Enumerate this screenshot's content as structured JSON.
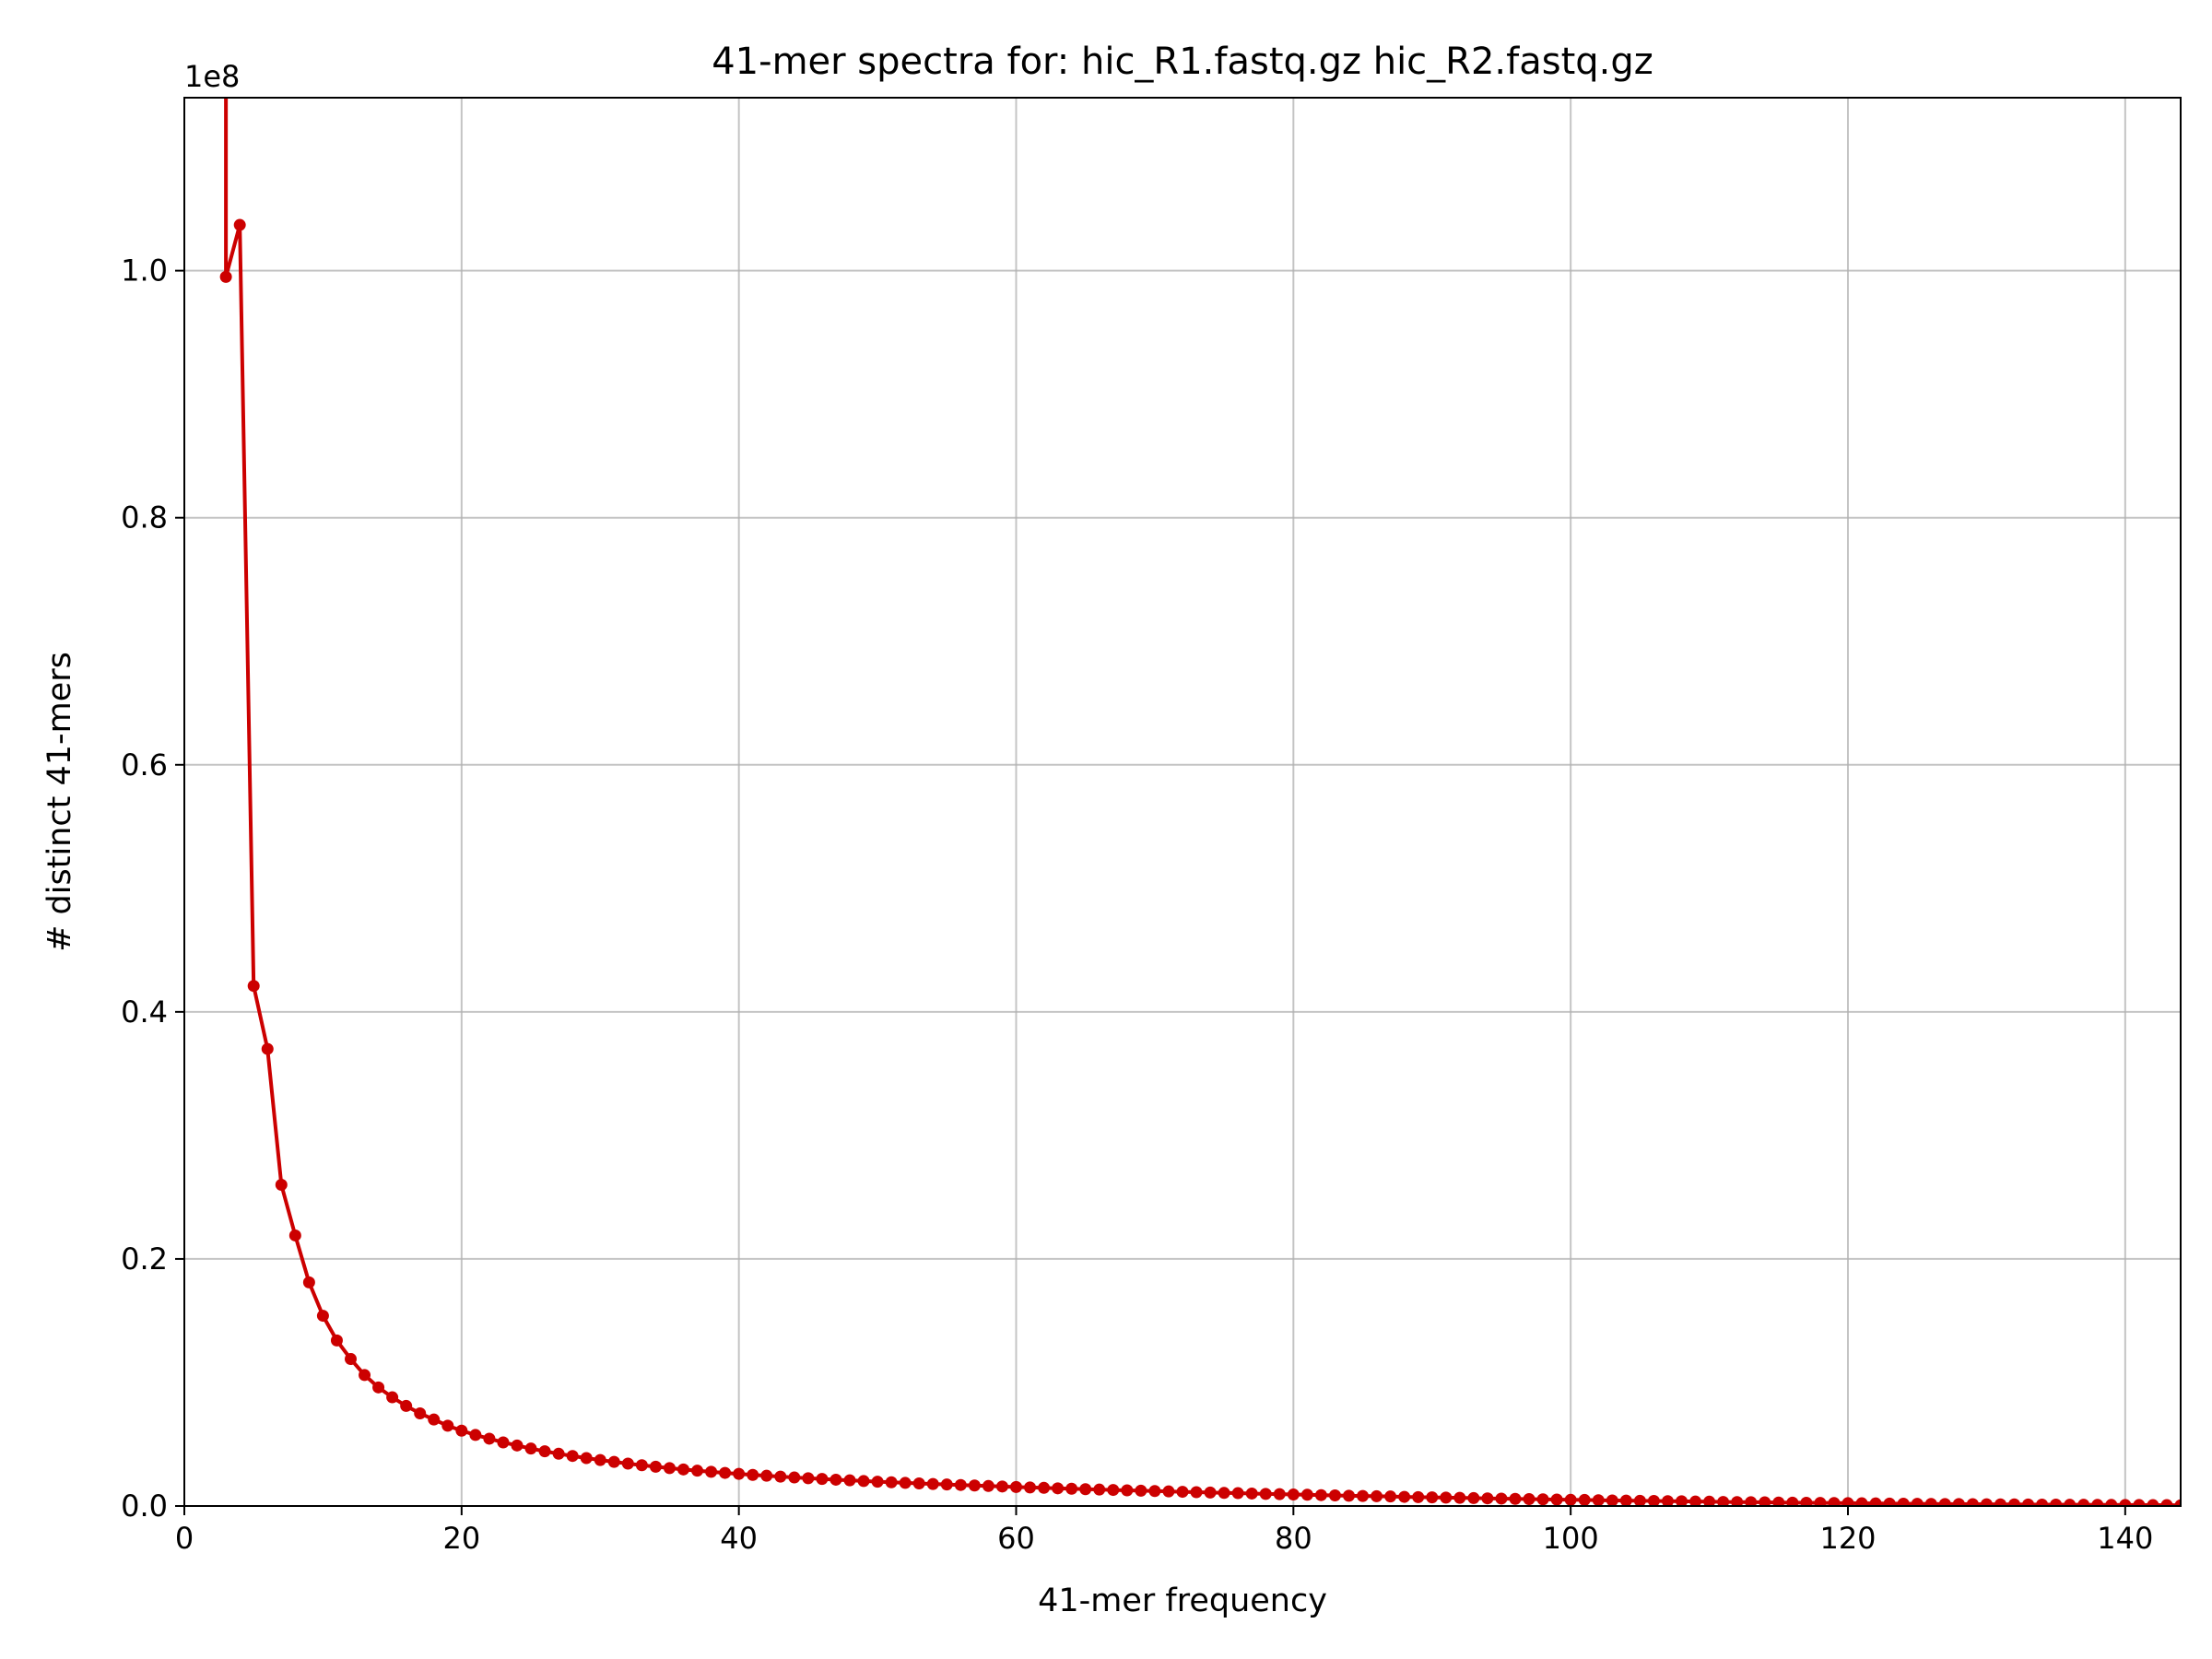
{
  "chart_data": {
    "type": "line",
    "title": "41-mer spectra for: hic_R1.fastq.gz hic_R2.fastq.gz",
    "xlabel": "41-mer frequency",
    "ylabel": "# distinct 41-mers",
    "y_exponent_label": "1e8",
    "xlim": [
      0,
      144
    ],
    "ylim": [
      0,
      1.14
    ],
    "y_scale_note": "values in units of 1e8",
    "x_ticks": [
      "0",
      "20",
      "40",
      "60",
      "80",
      "100",
      "120",
      "140"
    ],
    "y_ticks": [
      "0.0",
      "0.2",
      "0.4",
      "0.6",
      "0.8",
      "1.0"
    ],
    "grid": true,
    "series": [
      {
        "color": "#cc0000",
        "marker": "circle",
        "x": [
          3,
          4,
          5,
          6,
          7,
          8,
          9,
          10,
          11,
          12,
          13,
          14,
          15,
          16,
          17,
          18,
          19,
          20,
          21,
          22,
          23,
          24,
          25,
          26,
          27,
          28,
          29,
          30,
          31,
          32,
          33,
          34,
          35,
          36,
          37,
          38,
          39,
          40,
          41,
          42,
          43,
          44,
          45,
          46,
          47,
          48,
          49,
          50,
          51,
          52,
          53,
          54,
          55,
          56,
          57,
          58,
          59,
          60,
          61,
          62,
          63,
          64,
          65,
          66,
          67,
          68,
          69,
          70,
          71,
          72,
          73,
          74,
          75,
          76,
          77,
          78,
          79,
          80,
          81,
          82,
          83,
          84,
          85,
          86,
          87,
          88,
          89,
          90,
          91,
          92,
          93,
          94,
          95,
          96,
          97,
          98,
          99,
          100,
          101,
          102,
          103,
          104,
          105,
          106,
          107,
          108,
          109,
          110,
          111,
          112,
          113,
          114,
          115,
          116,
          117,
          118,
          119,
          120,
          121,
          122,
          123,
          124,
          125,
          126,
          127,
          128,
          129,
          130,
          131,
          132,
          133,
          134,
          135,
          136,
          137,
          138,
          139,
          140,
          141,
          142,
          143,
          144
        ],
        "y": [
          0.995,
          1.037,
          0.421,
          0.37,
          0.26,
          0.219,
          0.181,
          0.154,
          0.134,
          0.119,
          0.106,
          0.096,
          0.088,
          0.081,
          0.075,
          0.07,
          0.065,
          0.061,
          0.0575,
          0.0545,
          0.0515,
          0.049,
          0.0465,
          0.0443,
          0.0423,
          0.0405,
          0.0388,
          0.0372,
          0.0357,
          0.0343,
          0.033,
          0.0318,
          0.0307,
          0.0296,
          0.0286,
          0.0277,
          0.0268,
          0.026,
          0.0252,
          0.0245,
          0.0238,
          0.0231,
          0.0225,
          0.0219,
          0.0213,
          0.0208,
          0.0202,
          0.0197,
          0.0192,
          0.0187,
          0.0183,
          0.0178,
          0.0174,
          0.017,
          0.0166,
          0.0162,
          0.0158,
          0.0154,
          0.015,
          0.0147,
          0.0143,
          0.014,
          0.0136,
          0.0133,
          0.013,
          0.0127,
          0.0124,
          0.0121,
          0.0118,
          0.0115,
          0.0112,
          0.0109,
          0.0106,
          0.0104,
          0.0101,
          0.0098,
          0.0096,
          0.0093,
          0.0091,
          0.0088,
          0.0086,
          0.0083,
          0.0081,
          0.0079,
          0.0077,
          0.0074,
          0.0072,
          0.007,
          0.0068,
          0.0066,
          0.0064,
          0.0062,
          0.006,
          0.0058,
          0.0056,
          0.0054,
          0.0052,
          0.005,
          0.0049,
          0.0047,
          0.0045,
          0.0044,
          0.0042,
          0.0041,
          0.0039,
          0.0038,
          0.0036,
          0.0035,
          0.0033,
          0.0032,
          0.0031,
          0.003,
          0.0028,
          0.0027,
          0.0026,
          0.0025,
          0.0024,
          0.0023,
          0.0022,
          0.0021,
          0.002,
          0.0019,
          0.0018,
          0.0017,
          0.0016,
          0.0016,
          0.0015,
          0.0014,
          0.0013,
          0.0013,
          0.0012,
          0.0011,
          0.0011,
          0.001,
          0.001,
          0.0009,
          0.0009,
          0.0008,
          0.0008,
          0.0007,
          0.0007,
          0.0006
        ],
        "line_starts_above_axis_top": true
      }
    ]
  }
}
